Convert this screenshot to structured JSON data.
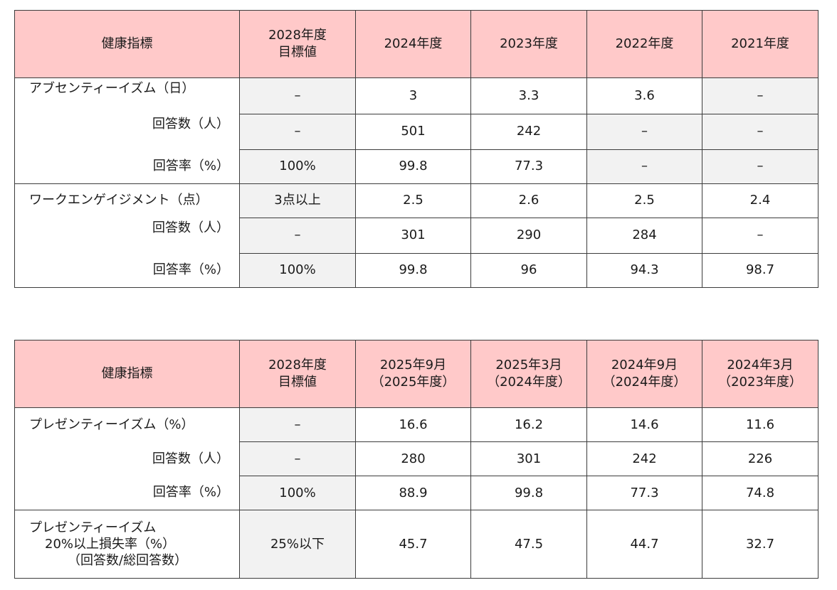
{
  "table1": {
    "header": {
      "label": "健康指標",
      "target": [
        "2028年度",
        "目標値"
      ],
      "columns": [
        "2024年度",
        "2023年度",
        "2022年度",
        "2021年度"
      ]
    },
    "groups": [
      {
        "title": "アブセンティーイズム（日）",
        "rows": [
          {
            "label": "",
            "target": "–",
            "values": [
              "3",
              "3.3",
              "3.6",
              "–"
            ]
          },
          {
            "label": "回答数（人）",
            "target": "–",
            "values": [
              "501",
              "242",
              "–",
              "–"
            ]
          },
          {
            "label": "回答率（%）",
            "target": "100%",
            "values": [
              "99.8",
              "77.3",
              "–",
              "–"
            ]
          }
        ]
      },
      {
        "title": "ワークエンゲイジメント（点）",
        "rows": [
          {
            "label": "",
            "target": "3点以上",
            "values": [
              "2.5",
              "2.6",
              "2.5",
              "2.4"
            ]
          },
          {
            "label": "回答数（人）",
            "target": "–",
            "values": [
              "301",
              "290",
              "284",
              "–"
            ]
          },
          {
            "label": "回答率（%）",
            "target": "100%",
            "values": [
              "99.8",
              "96",
              "94.3",
              "98.7"
            ]
          }
        ]
      }
    ]
  },
  "table2": {
    "header": {
      "label": "健康指標",
      "target": [
        "2028年度",
        "目標値"
      ],
      "columns": [
        [
          "2025年9月",
          "（2025年度）"
        ],
        [
          "2025年3月",
          "（2024年度）"
        ],
        [
          "2024年9月",
          "（2024年度）"
        ],
        [
          "2024年3月",
          "（2023年度）"
        ]
      ]
    },
    "groups": [
      {
        "title": "プレゼンティーイズム（%）",
        "rows": [
          {
            "label": "",
            "target": "–",
            "values": [
              "16.6",
              "16.2",
              "14.6",
              "11.6"
            ]
          },
          {
            "label": "回答数（人）",
            "target": "–",
            "values": [
              "280",
              "301",
              "242",
              "226"
            ]
          },
          {
            "label": "回答率（%）",
            "target": "100%",
            "values": [
              "88.9",
              "99.8",
              "77.3",
              "74.8"
            ]
          }
        ]
      },
      {
        "title_lines": [
          "プレゼンティーイズム",
          "20%以上損失率（%）",
          "（回答数/総回答数）"
        ],
        "rows": [
          {
            "label": "",
            "target": "25%以下",
            "values": [
              "45.7",
              "47.5",
              "44.7",
              "32.7"
            ]
          }
        ]
      }
    ]
  },
  "colors": {
    "header_bg": "#ffc9c9",
    "grey_cell": "#f2f2f2",
    "border": "#3c3c3c"
  }
}
